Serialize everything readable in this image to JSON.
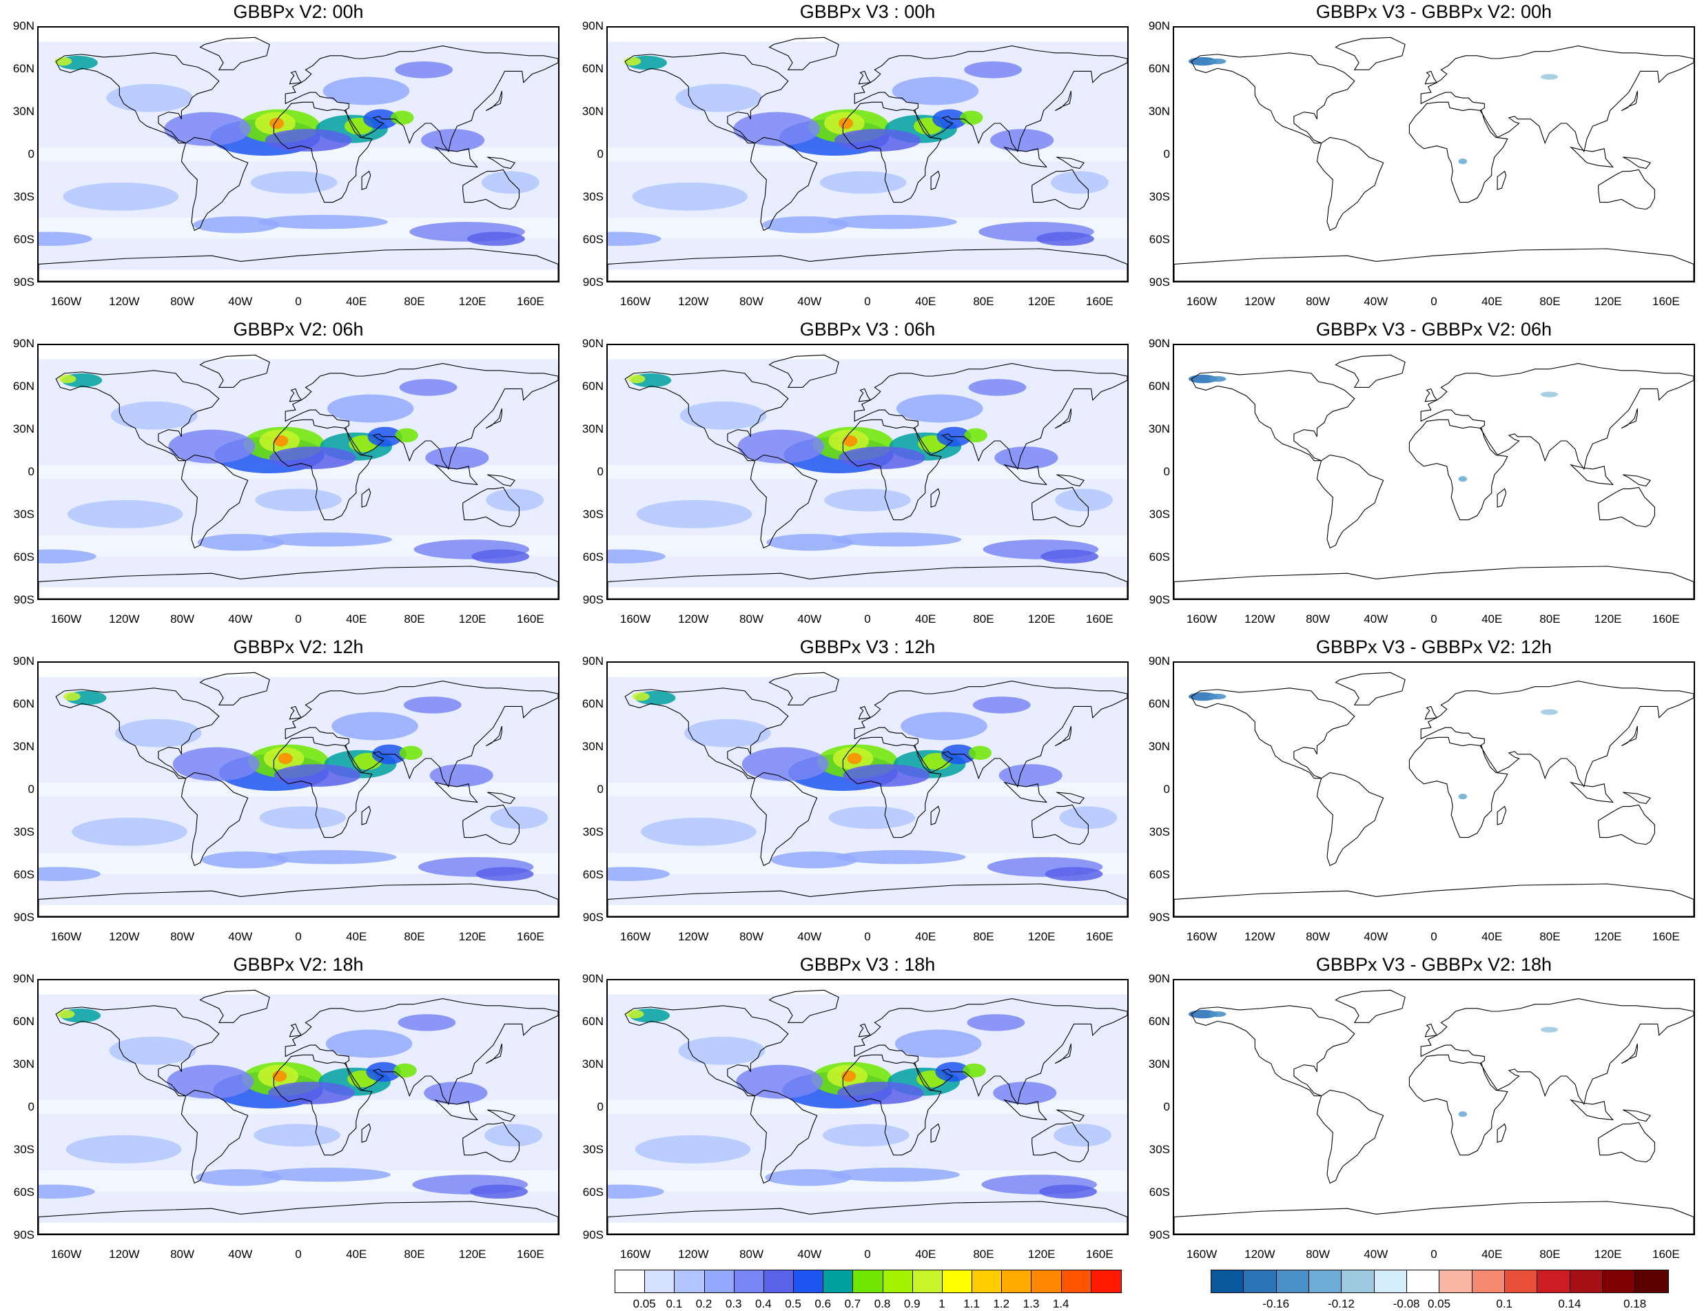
{
  "panels": [
    {
      "title": "GBBPx V2: 00h",
      "kind": "field",
      "variant": 0
    },
    {
      "title": "GBBPx V3 : 00h",
      "kind": "field",
      "variant": 0
    },
    {
      "title": "GBBPx V3 - GBBPx V2: 00h",
      "kind": "diff",
      "variant": 0
    },
    {
      "title": "GBBPx V2: 06h",
      "kind": "field",
      "variant": 1
    },
    {
      "title": "GBBPx V3 : 06h",
      "kind": "field",
      "variant": 1
    },
    {
      "title": "GBBPx V3 - GBBPx V2: 06h",
      "kind": "diff",
      "variant": 1
    },
    {
      "title": "GBBPx V2: 12h",
      "kind": "field",
      "variant": 2
    },
    {
      "title": "GBBPx V3 : 12h",
      "kind": "field",
      "variant": 2
    },
    {
      "title": "GBBPx V3 - GBBPx V2: 12h",
      "kind": "diff",
      "variant": 2
    },
    {
      "title": "GBBPx V2: 18h",
      "kind": "field",
      "variant": 3
    },
    {
      "title": "GBBPx V3 : 18h",
      "kind": "field",
      "variant": 3
    },
    {
      "title": "GBBPx V3 - GBBPx V2: 18h",
      "kind": "diff",
      "variant": 3
    }
  ],
  "lat_labels": [
    "90N",
    "60N",
    "30N",
    "0",
    "30S",
    "60S",
    "90S"
  ],
  "lon_labels": [
    "160W",
    "120W",
    "80W",
    "40W",
    "0",
    "40E",
    "80E",
    "120E",
    "160E"
  ],
  "field_colorbar": {
    "colors": [
      "#ffffff",
      "#d6e0ff",
      "#b3c5ff",
      "#93a9ff",
      "#7a86f5",
      "#5a62ea",
      "#1c55f0",
      "#00a0a0",
      "#6ee600",
      "#a5f200",
      "#c9f52b",
      "#ffff00",
      "#ffcc00",
      "#ffaa00",
      "#ff8800",
      "#ff5500",
      "#ff1a00"
    ],
    "labels": [
      "0.05",
      "0.1",
      "0.2",
      "0.3",
      "0.4",
      "0.5",
      "0.6",
      "0.7",
      "0.8",
      "0.9",
      "1",
      "1.1",
      "1.2",
      "1.3",
      "1.4"
    ]
  },
  "diff_colorbar": {
    "colors": [
      "#08589e",
      "#2b74b8",
      "#4a90c8",
      "#6eaed6",
      "#9ecae1",
      "#d4effa",
      "#ffffff",
      "#f9b6a3",
      "#f58a70",
      "#e8503a",
      "#cb1d22",
      "#a50f15",
      "#7f0000",
      "#5e0000"
    ],
    "labels": [
      "-0.16",
      "-0.12",
      "-0.08",
      "0.05",
      "0.1",
      "0.14",
      "0.18"
    ]
  }
}
